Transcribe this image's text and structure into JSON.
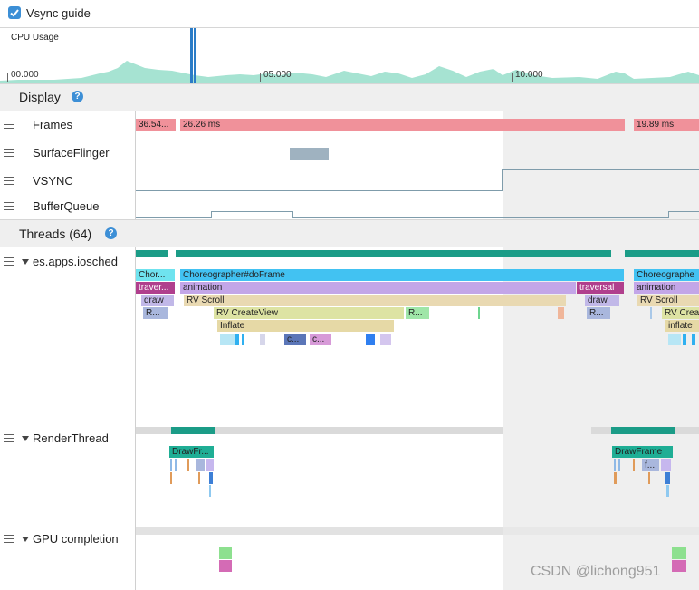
{
  "toolbar": {
    "vsync_guide_label": "Vsync guide",
    "vsync_guide_checked": true
  },
  "cpu": {
    "label": "CPU Usage",
    "ticks": [
      "00.000",
      "05.000",
      "10.000"
    ]
  },
  "display": {
    "title": "Display",
    "help": "?",
    "rows": {
      "frames": "Frames",
      "surfaceflinger": "SurfaceFlinger",
      "vsync": "VSYNC",
      "bufferqueue": "BufferQueue"
    },
    "frames": [
      "36.54...",
      "26.26 ms",
      "19.89 ms"
    ]
  },
  "threads": {
    "title": "Threads (64)",
    "help": "?",
    "main": {
      "name": "es.apps.iosched",
      "slices": {
        "chor_short": "Chor...",
        "choreographer": "Choreographer#doFrame",
        "choreographer_2": "Choreographe",
        "traver_short": "traver...",
        "animation": "animation",
        "animation_2": "animation",
        "traversal": "traversal",
        "draw": "draw",
        "draw_2": "draw",
        "rv_scroll": "RV Scroll",
        "rv_scroll_2": "RV Scroll",
        "r1": "R...",
        "r2": "R...",
        "r3": "R...",
        "rv_createview": "RV CreateView",
        "rv_createview_2": "RV Crea",
        "inflate": "Inflate",
        "inflate_2": "inflate",
        "c1": "c...",
        "c2": "c..."
      }
    },
    "render": {
      "name": "RenderThread",
      "slices": {
        "drawframe_short": "DrawFr...",
        "drawframe": "DrawFrame",
        "f_short": "f..."
      }
    },
    "gpu": {
      "name": "GPU completion"
    }
  },
  "watermark": "CSDN @lichong951",
  "colors": {
    "frame": "#f0919a",
    "vsync_line": "#7f9cab",
    "surfaceflinger": "#9fb2c0",
    "choreographer": "#42c2f2",
    "animation": "#c3a6e8",
    "traversal": "#b03f8d",
    "draw": "#c1b8e8",
    "rv_scroll": "#e9d9b2",
    "rv_createview": "#dde3a3",
    "inflate": "#e6d9a6",
    "thread_state": "#1b9c87",
    "cpu_area": "#a6e3d2",
    "selection": "#2b7cc7"
  }
}
